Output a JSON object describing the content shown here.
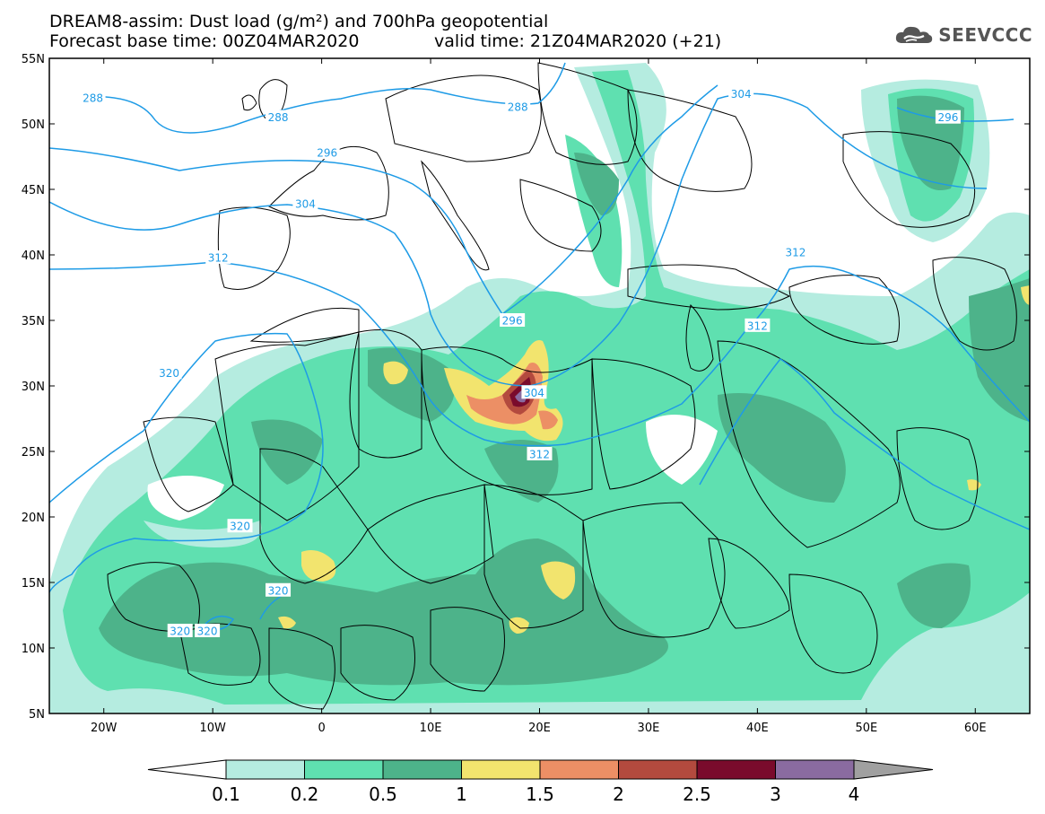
{
  "title": {
    "line1": "DREAM8-assim: Dust load (g/m²) and 700hPa geopotential",
    "line2_left": "Forecast base time: 00Z04MAR2020",
    "line2_right": "valid time: 21Z04MAR2020 (+21)"
  },
  "logo": {
    "text": "SEEVCCC",
    "icon": "cloud-icon"
  },
  "axes": {
    "lat_labels": [
      "55N",
      "50N",
      "45N",
      "40N",
      "35N",
      "30N",
      "25N",
      "20N",
      "15N",
      "10N",
      "5N"
    ],
    "lat_values": [
      55,
      50,
      45,
      40,
      35,
      30,
      25,
      20,
      15,
      10,
      5
    ],
    "lon_labels": [
      "20W",
      "10W",
      "0",
      "10E",
      "20E",
      "30E",
      "40E",
      "50E",
      "60E"
    ],
    "lon_values": [
      -20,
      -10,
      0,
      10,
      20,
      30,
      40,
      50,
      60
    ],
    "lon_range": [
      -25,
      65
    ],
    "lat_range": [
      5,
      55
    ]
  },
  "colorbar": {
    "labels": [
      "0.1",
      "0.2",
      "0.5",
      "1",
      "1.5",
      "2",
      "2.5",
      "3",
      "4"
    ],
    "colors": [
      "#b5ece0",
      "#5fe0b0",
      "#4db38a",
      "#f2e46e",
      "#ec8f65",
      "#b34a3e",
      "#7a0b2c",
      "#8a6ba0"
    ],
    "under_color": "#ffffff",
    "over_color": "#a0a0a0"
  },
  "contours": {
    "color": "#1e9be6",
    "labels": [
      {
        "text": "288",
        "lon": -21,
        "lat": 52
      },
      {
        "text": "288",
        "lon": -4,
        "lat": 50.5
      },
      {
        "text": "288",
        "lon": 18,
        "lat": 51.3
      },
      {
        "text": "296",
        "lon": 0.5,
        "lat": 47.8
      },
      {
        "text": "296",
        "lon": 17.5,
        "lat": 35
      },
      {
        "text": "296",
        "lon": 57.5,
        "lat": 50.5
      },
      {
        "text": "304",
        "lon": -1.5,
        "lat": 43.9
      },
      {
        "text": "304",
        "lon": 38.5,
        "lat": 52.3
      },
      {
        "text": "304",
        "lon": 19.5,
        "lat": 29.5
      },
      {
        "text": "312",
        "lon": -9.5,
        "lat": 39.8
      },
      {
        "text": "312",
        "lon": 20,
        "lat": 24.8
      },
      {
        "text": "312",
        "lon": 40,
        "lat": 34.6
      },
      {
        "text": "312",
        "lon": 43.5,
        "lat": 40.2
      },
      {
        "text": "320",
        "lon": -14,
        "lat": 31
      },
      {
        "text": "320",
        "lon": -7.5,
        "lat": 19.3
      },
      {
        "text": "320",
        "lon": -4,
        "lat": 14.4
      },
      {
        "text": "320",
        "lon": -13,
        "lat": 11.3
      },
      {
        "text": "320",
        "lon": -10.5,
        "lat": 11.3
      }
    ]
  }
}
